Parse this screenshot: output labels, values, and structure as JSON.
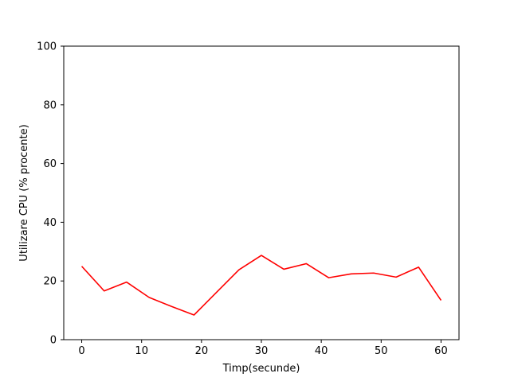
{
  "chart_data": {
    "type": "line",
    "title": "",
    "xlabel": "Timp(secunde)",
    "ylabel": "Utilizare CPU (% procente)",
    "xlim": [
      -3,
      63
    ],
    "ylim": [
      0,
      100
    ],
    "xticks": [
      0,
      10,
      20,
      30,
      40,
      50,
      60
    ],
    "yticks": [
      0,
      20,
      40,
      60,
      80,
      100
    ],
    "grid": false,
    "series": [
      {
        "color": "#ff0000",
        "x": [
          0,
          3.75,
          7.5,
          11.25,
          15,
          18.75,
          22.5,
          26.25,
          30,
          33.75,
          37.5,
          41.25,
          45,
          48.75,
          52.5,
          56.25,
          60
        ],
        "y": [
          25.0,
          16.6,
          19.6,
          14.4,
          11.3,
          8.4,
          16.1,
          23.8,
          28.7,
          24.0,
          25.9,
          21.1,
          22.4,
          22.7,
          21.3,
          24.7,
          13.4
        ]
      }
    ]
  }
}
